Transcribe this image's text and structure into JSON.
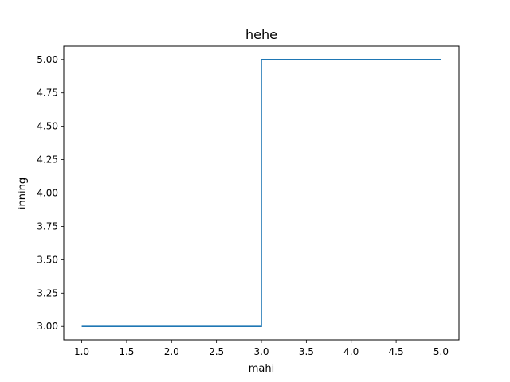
{
  "chart_data": {
    "type": "line",
    "drawstyle": "steps-post",
    "title": "hehe",
    "xlabel": "mahi",
    "ylabel": "inning",
    "x": [
      1,
      2,
      3,
      4,
      5
    ],
    "series": [
      {
        "values": [
          3,
          3,
          5,
          5,
          5
        ],
        "color": "#1f77b4"
      }
    ],
    "xlim": [
      0.8,
      5.2
    ],
    "ylim": [
      2.9,
      5.1
    ],
    "xticks": [
      1.0,
      1.5,
      2.0,
      2.5,
      3.0,
      3.5,
      4.0,
      4.5,
      5.0
    ],
    "xtick_labels": [
      "1.0",
      "1.5",
      "2.0",
      "2.5",
      "3.0",
      "3.5",
      "4.0",
      "4.5",
      "5.0"
    ],
    "yticks": [
      3.0,
      3.25,
      3.5,
      3.75,
      4.0,
      4.25,
      4.5,
      4.75,
      5.0
    ],
    "ytick_labels": [
      "3.00",
      "3.25",
      "3.50",
      "3.75",
      "4.00",
      "4.25",
      "4.50",
      "4.75",
      "5.00"
    ],
    "grid": false,
    "legend": "none"
  }
}
